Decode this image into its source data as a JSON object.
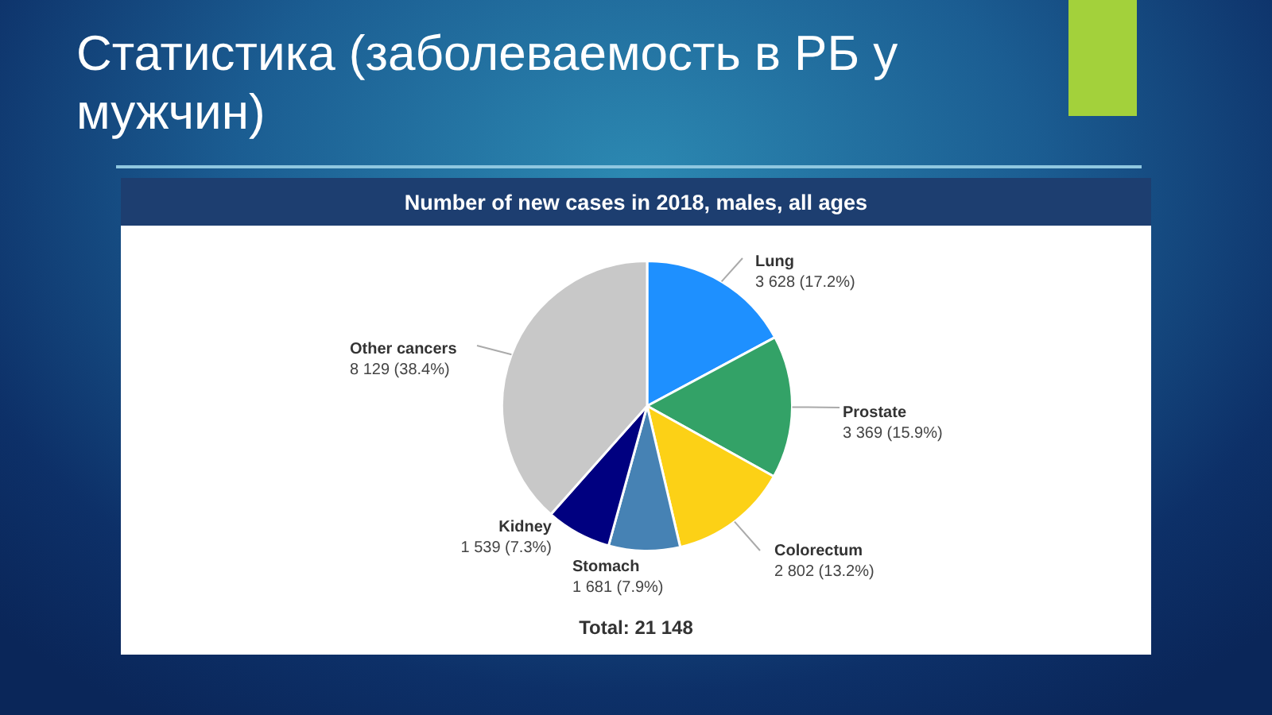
{
  "chart_data": {
    "type": "pie",
    "title": "Статистика (заболеваемость в РБ у мужчин)",
    "subtitle": "Number of new cases in 2018, males, all ages",
    "categories": [
      "Lung",
      "Prostate",
      "Colorectum",
      "Stomach",
      "Kidney",
      "Other cancers"
    ],
    "values": [
      3628,
      3369,
      2802,
      1681,
      1539,
      8129
    ],
    "colors": [
      "#1e90ff",
      "#33a267",
      "#fcd116",
      "#4682b4",
      "#000080",
      "#c8c8c8"
    ],
    "value_labels": [
      "3 628 (17.2%)",
      "3 369 (15.9%)",
      "2 802 (13.2%)",
      "1 681 (7.9%)",
      "1 539 (7.3%)",
      "8 129 (38.4%)"
    ],
    "annotations": [
      "Total: 21 148"
    ],
    "legend": false
  }
}
